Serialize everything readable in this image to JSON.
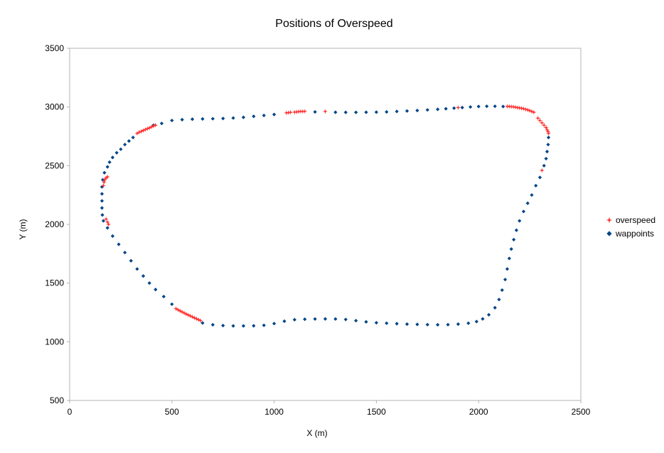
{
  "chart_data": {
    "type": "scatter",
    "title": "Positions of Overspeed",
    "xlabel": "X (m)",
    "ylabel": "Y (m)",
    "xlim": [
      0,
      2500
    ],
    "ylim": [
      500,
      3500
    ],
    "xticks": [
      0,
      500,
      1000,
      1500,
      2000,
      2500
    ],
    "yticks": [
      500,
      1000,
      1500,
      2000,
      2500,
      3000,
      3500
    ],
    "grid": false,
    "legend_position": "right",
    "series": [
      {
        "name": "overspeed",
        "marker": "star",
        "color": "#ff3333",
        "points": [
          [
            165,
            2330
          ],
          [
            168,
            2360
          ],
          [
            172,
            2380
          ],
          [
            178,
            2395
          ],
          [
            185,
            2405
          ],
          [
            178,
            2045
          ],
          [
            185,
            2020
          ],
          [
            190,
            2000
          ],
          [
            330,
            2775
          ],
          [
            340,
            2785
          ],
          [
            350,
            2792
          ],
          [
            360,
            2800
          ],
          [
            370,
            2808
          ],
          [
            380,
            2815
          ],
          [
            390,
            2822
          ],
          [
            400,
            2830
          ],
          [
            410,
            2838
          ],
          [
            420,
            2845
          ],
          [
            520,
            1282
          ],
          [
            530,
            1272
          ],
          [
            540,
            1263
          ],
          [
            550,
            1254
          ],
          [
            560,
            1245
          ],
          [
            570,
            1236
          ],
          [
            580,
            1228
          ],
          [
            590,
            1220
          ],
          [
            600,
            1212
          ],
          [
            610,
            1204
          ],
          [
            620,
            1196
          ],
          [
            630,
            1188
          ],
          [
            640,
            1180
          ],
          [
            1060,
            2950
          ],
          [
            1070,
            2952
          ],
          [
            1080,
            2954
          ],
          [
            1100,
            2956
          ],
          [
            1110,
            2958
          ],
          [
            1120,
            2960
          ],
          [
            1130,
            2962
          ],
          [
            1140,
            2962
          ],
          [
            1150,
            2963
          ],
          [
            1250,
            2962
          ],
          [
            1900,
            2995
          ],
          [
            2140,
            3005
          ],
          [
            2150,
            3004
          ],
          [
            2160,
            3003
          ],
          [
            2170,
            3001
          ],
          [
            2180,
            2998
          ],
          [
            2190,
            2995
          ],
          [
            2200,
            2992
          ],
          [
            2210,
            2989
          ],
          [
            2220,
            2985
          ],
          [
            2230,
            2980
          ],
          [
            2240,
            2975
          ],
          [
            2250,
            2969
          ],
          [
            2260,
            2962
          ],
          [
            2270,
            2955
          ],
          [
            2290,
            2905
          ],
          [
            2300,
            2885
          ],
          [
            2310,
            2865
          ],
          [
            2320,
            2845
          ],
          [
            2330,
            2825
          ],
          [
            2335,
            2805
          ],
          [
            2340,
            2790
          ],
          [
            2342,
            2775
          ],
          [
            2310,
            2460
          ]
        ]
      },
      {
        "name": "wappoints",
        "marker": "diamond",
        "color": "#004586",
        "points": [
          [
            170,
            2440
          ],
          [
            162,
            2380
          ],
          [
            158,
            2320
          ],
          [
            158,
            2260
          ],
          [
            158,
            2200
          ],
          [
            158,
            2140
          ],
          [
            160,
            2080
          ],
          [
            165,
            2030
          ],
          [
            185,
            1970
          ],
          [
            210,
            1900
          ],
          [
            240,
            1830
          ],
          [
            270,
            1760
          ],
          [
            300,
            1690
          ],
          [
            330,
            1620
          ],
          [
            360,
            1560
          ],
          [
            390,
            1500
          ],
          [
            420,
            1445
          ],
          [
            460,
            1385
          ],
          [
            500,
            1320
          ],
          [
            650,
            1160
          ],
          [
            700,
            1145
          ],
          [
            750,
            1138
          ],
          [
            800,
            1135
          ],
          [
            850,
            1135
          ],
          [
            900,
            1136
          ],
          [
            950,
            1140
          ],
          [
            1000,
            1155
          ],
          [
            1050,
            1175
          ],
          [
            1100,
            1188
          ],
          [
            1150,
            1192
          ],
          [
            1200,
            1194
          ],
          [
            1250,
            1195
          ],
          [
            1300,
            1194
          ],
          [
            1350,
            1190
          ],
          [
            1400,
            1180
          ],
          [
            1450,
            1170
          ],
          [
            1500,
            1162
          ],
          [
            1550,
            1158
          ],
          [
            1600,
            1154
          ],
          [
            1650,
            1150
          ],
          [
            1700,
            1148
          ],
          [
            1750,
            1146
          ],
          [
            1800,
            1145
          ],
          [
            1850,
            1146
          ],
          [
            1900,
            1150
          ],
          [
            1950,
            1158
          ],
          [
            1990,
            1172
          ],
          [
            2020,
            1195
          ],
          [
            2050,
            1230
          ],
          [
            2080,
            1290
          ],
          [
            2100,
            1360
          ],
          [
            2115,
            1440
          ],
          [
            2130,
            1530
          ],
          [
            2140,
            1620
          ],
          [
            2150,
            1710
          ],
          [
            2160,
            1790
          ],
          [
            2172,
            1870
          ],
          [
            2185,
            1950
          ],
          [
            2200,
            2030
          ],
          [
            2220,
            2110
          ],
          [
            2240,
            2180
          ],
          [
            2260,
            2250
          ],
          [
            2280,
            2330
          ],
          [
            2300,
            2400
          ],
          [
            2320,
            2500
          ],
          [
            2330,
            2560
          ],
          [
            2335,
            2620
          ],
          [
            2340,
            2680
          ],
          [
            2342,
            2740
          ],
          [
            2120,
            3004
          ],
          [
            2080,
            3006
          ],
          [
            2040,
            3006
          ],
          [
            2000,
            3004
          ],
          [
            1960,
            3000
          ],
          [
            1920,
            2995
          ],
          [
            1880,
            2990
          ],
          [
            1840,
            2985
          ],
          [
            1800,
            2980
          ],
          [
            1750,
            2975
          ],
          [
            1700,
            2970
          ],
          [
            1650,
            2966
          ],
          [
            1600,
            2962
          ],
          [
            1550,
            2958
          ],
          [
            1500,
            2956
          ],
          [
            1450,
            2955
          ],
          [
            1400,
            2954
          ],
          [
            1350,
            2954
          ],
          [
            1300,
            2955
          ],
          [
            1200,
            2958
          ],
          [
            1000,
            2936
          ],
          [
            950,
            2928
          ],
          [
            900,
            2920
          ],
          [
            850,
            2912
          ],
          [
            800,
            2906
          ],
          [
            750,
            2902
          ],
          [
            700,
            2900
          ],
          [
            650,
            2898
          ],
          [
            600,
            2896
          ],
          [
            550,
            2892
          ],
          [
            500,
            2885
          ],
          [
            450,
            2860
          ],
          [
            410,
            2845
          ],
          [
            310,
            2740
          ],
          [
            290,
            2710
          ],
          [
            270,
            2680
          ],
          [
            250,
            2640
          ],
          [
            230,
            2610
          ],
          [
            210,
            2570
          ],
          [
            195,
            2530
          ],
          [
            185,
            2490
          ]
        ]
      }
    ]
  }
}
